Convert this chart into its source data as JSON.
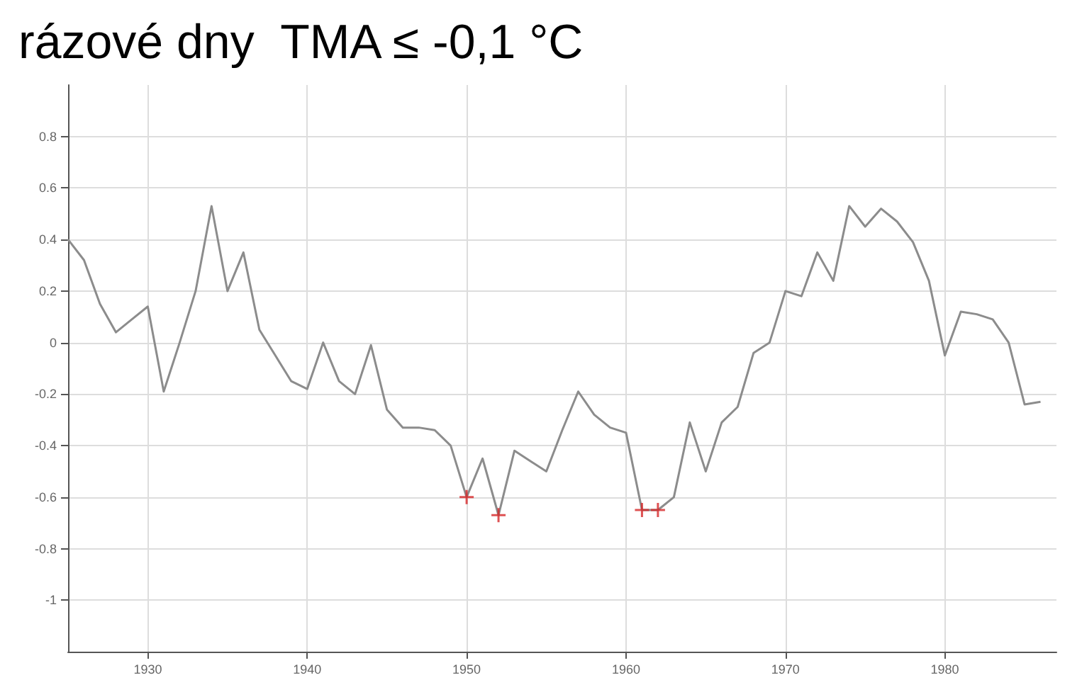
{
  "chart_data": {
    "type": "line",
    "title": "rázové dny  TMA ≤ -0,1 °C",
    "xlim": [
      1925,
      1987
    ],
    "xticks": [
      1930,
      1940,
      1950,
      1960,
      1970,
      1980
    ],
    "ylim": [
      -1.2,
      1.0
    ],
    "yticks": [
      -1,
      -0.8,
      -0.6,
      -0.4,
      -0.2,
      0,
      0.2,
      0.4,
      0.6,
      0.8
    ],
    "grid": true,
    "series": [
      {
        "color": "#8c8c8c",
        "marker": "none",
        "x": [
          1925,
          1926,
          1927,
          1928,
          1929,
          1930,
          1931,
          1932,
          1933,
          1934,
          1935,
          1936,
          1937,
          1938,
          1939,
          1940,
          1941,
          1942,
          1943,
          1944,
          1945,
          1946,
          1947,
          1948,
          1949,
          1950,
          1951,
          1952,
          1953,
          1954,
          1955,
          1956,
          1957,
          1958,
          1959,
          1960,
          1961,
          1962,
          1963,
          1964,
          1965,
          1966,
          1967,
          1968,
          1969,
          1970,
          1971,
          1972,
          1973,
          1974,
          1975,
          1976,
          1977,
          1978,
          1979,
          1980,
          1981,
          1982,
          1983,
          1984,
          1985,
          1986
        ],
        "values": [
          0.4,
          0.32,
          0.15,
          0.04,
          0.09,
          0.14,
          -0.19,
          0.0,
          0.2,
          0.53,
          0.2,
          0.35,
          0.05,
          -0.05,
          -0.15,
          -0.18,
          0.0,
          -0.15,
          -0.2,
          -0.01,
          -0.26,
          -0.33,
          -0.33,
          -0.34,
          -0.4,
          -0.6,
          -0.45,
          -0.67,
          -0.42,
          -0.46,
          -0.5,
          -0.34,
          -0.19,
          -0.28,
          -0.33,
          -0.35,
          -0.65,
          -0.65,
          -0.6,
          -0.31,
          -0.5,
          -0.31,
          -0.25,
          -0.04,
          0.0,
          0.2,
          0.18,
          0.35,
          0.24,
          0.53,
          0.45,
          0.52,
          0.47,
          0.39,
          0.24,
          -0.05,
          0.12,
          0.11,
          0.09,
          0.0,
          -0.24,
          -0.23
        ]
      },
      {
        "type": "scatter",
        "color": "#d62728",
        "marker": "cross",
        "x": [
          1950,
          1952,
          1961,
          1962
        ],
        "values": [
          -0.6,
          -0.67,
          -0.65,
          -0.65
        ]
      }
    ]
  }
}
